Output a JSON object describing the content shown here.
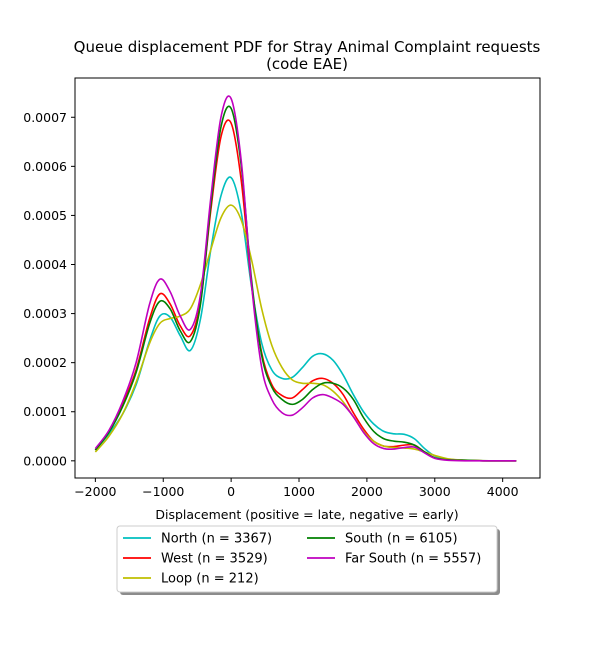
{
  "chart_data": {
    "type": "line",
    "title": "Queue displacement PDF for Stray Animal Complaint  requests",
    "subtitle": "(code EAE)",
    "xlabel": "Displacement (positive = late, negative = early)",
    "ylabel": "",
    "xlim": [
      -2300,
      4550
    ],
    "ylim": [
      -3.5e-05,
      0.00078
    ],
    "xticks": [
      -2000,
      -1000,
      0,
      1000,
      2000,
      3000,
      4000
    ],
    "xtick_labels": [
      "−2000",
      "−1000",
      "0",
      "1000",
      "2000",
      "3000",
      "4000"
    ],
    "yticks": [
      0.0,
      0.0001,
      0.0002,
      0.0003,
      0.0004,
      0.0005,
      0.0006,
      0.0007
    ],
    "ytick_labels": [
      "0.0000",
      "0.0001",
      "0.0002",
      "0.0003",
      "0.0004",
      "0.0005",
      "0.0006",
      "0.0007"
    ],
    "grid": false,
    "legend_position": "below plot, center",
    "legend_columns": 2,
    "series": [
      {
        "name": "North (n = 3367)",
        "color": "#00bfbf",
        "x": [
          -2000,
          -1800,
          -1600,
          -1400,
          -1200,
          -1050,
          -900,
          -750,
          -600,
          -450,
          -300,
          -150,
          0,
          150,
          300,
          450,
          600,
          750,
          900,
          1050,
          1200,
          1350,
          1500,
          1650,
          1800,
          1950,
          2100,
          2250,
          2400,
          2550,
          2700,
          2850,
          3000,
          3200,
          3500,
          3800,
          4200
        ],
        "y": [
          2.2e-05,
          5.5e-05,
          9.5e-05,
          0.000155,
          0.000245,
          0.000295,
          0.000293,
          0.000255,
          0.000225,
          0.00029,
          0.00043,
          0.00054,
          0.000577,
          0.000505,
          0.000355,
          0.00024,
          0.000185,
          0.000168,
          0.00017,
          0.00019,
          0.000213,
          0.000218,
          0.000205,
          0.000175,
          0.000135,
          0.0001,
          7.5e-05,
          6e-05,
          5.5e-05,
          5.4e-05,
          4.5e-05,
          2.5e-05,
          1e-05,
          3e-06,
          1e-06,
          0.0,
          0.0
        ]
      },
      {
        "name": "West (n = 3529)",
        "color": "#ff0000",
        "x": [
          -2000,
          -1800,
          -1600,
          -1400,
          -1200,
          -1050,
          -900,
          -750,
          -600,
          -450,
          -300,
          -150,
          0,
          150,
          300,
          450,
          600,
          750,
          900,
          1050,
          1200,
          1350,
          1500,
          1650,
          1800,
          1950,
          2100,
          2250,
          2400,
          2550,
          2700,
          2850,
          3000,
          3200,
          3500,
          3800,
          4200
        ],
        "y": [
          2.2e-05,
          6e-05,
          0.000115,
          0.000185,
          0.00029,
          0.00034,
          0.00032,
          0.000275,
          0.000255,
          0.000325,
          0.00051,
          0.00066,
          0.000688,
          0.00057,
          0.00036,
          0.00022,
          0.000155,
          0.000133,
          0.000128,
          0.000145,
          0.000163,
          0.000168,
          0.000158,
          0.000135,
          9.8e-05,
          6.5e-05,
          4e-05,
          3e-05,
          2.9e-05,
          3.2e-05,
          3.2e-05,
          1.8e-05,
          6e-06,
          2e-06,
          1e-06,
          0.0,
          0.0
        ]
      },
      {
        "name": "Loop (n = 212)",
        "color": "#bfbf00",
        "x": [
          -2000,
          -1800,
          -1600,
          -1400,
          -1200,
          -1050,
          -900,
          -750,
          -600,
          -450,
          -300,
          -150,
          0,
          150,
          300,
          450,
          600,
          750,
          900,
          1050,
          1200,
          1350,
          1500,
          1650,
          1800,
          1950,
          2100,
          2250,
          2400,
          2550,
          2700,
          2850,
          3000,
          3200,
          3500,
          3800,
          4200
        ],
        "y": [
          1.8e-05,
          5e-05,
          9.5e-05,
          0.00016,
          0.00024,
          0.00028,
          0.00029,
          0.000295,
          0.00031,
          0.00036,
          0.00043,
          0.000495,
          0.000521,
          0.00049,
          0.00041,
          0.00031,
          0.000235,
          0.00019,
          0.000165,
          0.000158,
          0.000158,
          0.000155,
          0.000142,
          0.00012,
          9e-05,
          6e-05,
          4e-05,
          3e-05,
          2.7e-05,
          2.6e-05,
          2.4e-05,
          1.8e-05,
          1.1e-05,
          4e-06,
          1e-06,
          0.0,
          0.0
        ]
      },
      {
        "name": "South (n = 6105)",
        "color": "#008000",
        "x": [
          -2000,
          -1800,
          -1600,
          -1400,
          -1200,
          -1050,
          -900,
          -750,
          -600,
          -450,
          -300,
          -150,
          0,
          150,
          300,
          450,
          600,
          750,
          900,
          1050,
          1200,
          1350,
          1500,
          1650,
          1800,
          1950,
          2100,
          2250,
          2400,
          2550,
          2700,
          2850,
          3000,
          3200,
          3500,
          3800,
          4200
        ],
        "y": [
          2.2e-05,
          5.8e-05,
          0.00011,
          0.00018,
          0.00028,
          0.000325,
          0.00031,
          0.000265,
          0.000243,
          0.00032,
          0.00052,
          0.00068,
          0.000718,
          0.0006,
          0.00037,
          0.000215,
          0.00015,
          0.000125,
          0.000115,
          0.000125,
          0.000145,
          0.000158,
          0.000158,
          0.000148,
          0.000125,
          8.8e-05,
          6e-05,
          4.5e-05,
          4e-05,
          3.8e-05,
          3.2e-05,
          1.8e-05,
          6e-06,
          2e-06,
          1e-06,
          0.0,
          0.0
        ]
      },
      {
        "name": "Far South (n = 5557)",
        "color": "#bf00bf",
        "x": [
          -2000,
          -1800,
          -1600,
          -1400,
          -1200,
          -1050,
          -900,
          -750,
          -600,
          -450,
          -300,
          -150,
          0,
          150,
          300,
          450,
          600,
          750,
          900,
          1050,
          1200,
          1350,
          1500,
          1650,
          1800,
          1950,
          2100,
          2250,
          2400,
          2550,
          2700,
          2850,
          3000,
          3200,
          3500,
          3800,
          4200
        ],
        "y": [
          2.5e-05,
          6.2e-05,
          0.00012,
          0.0002,
          0.00032,
          0.00037,
          0.000345,
          0.000295,
          0.000268,
          0.00034,
          0.000535,
          0.0007,
          0.000738,
          0.00061,
          0.00036,
          0.00019,
          0.000125,
          9.8e-05,
          9.3e-05,
          0.000108,
          0.000128,
          0.000135,
          0.000128,
          0.000115,
          9e-05,
          5.8e-05,
          3.5e-05,
          2.5e-05,
          2.4e-05,
          2.7e-05,
          2.8e-05,
          1.6e-05,
          5e-06,
          1e-06,
          0.0,
          0.0,
          0.0
        ]
      }
    ]
  }
}
